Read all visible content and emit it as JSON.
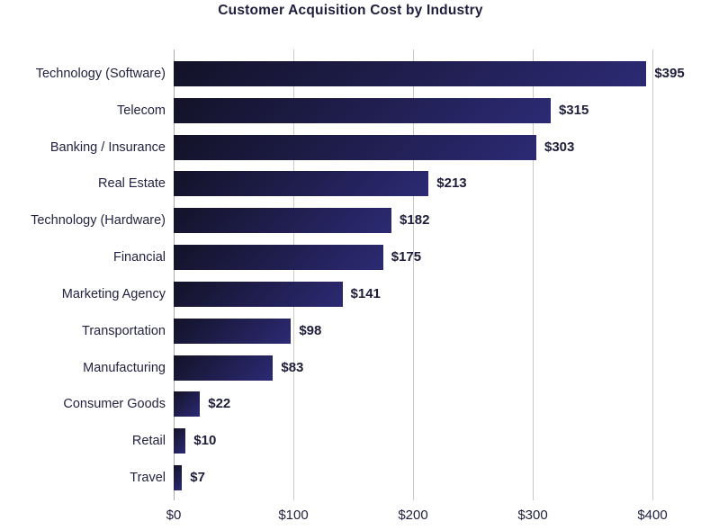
{
  "chart_data": {
    "type": "bar",
    "orientation": "horizontal",
    "title": "Customer Acquisition Cost by Industry",
    "categories": [
      "Technology (Software)",
      "Telecom",
      "Banking / Insurance",
      "Real Estate",
      "Technology (Hardware)",
      "Financial",
      "Marketing Agency",
      "Transportation",
      "Manufacturing",
      "Consumer Goods",
      "Retail",
      "Travel"
    ],
    "values": [
      395,
      315,
      303,
      213,
      182,
      175,
      141,
      98,
      83,
      22,
      10,
      7
    ],
    "value_labels": [
      "$395",
      "$315",
      "$303",
      "$213",
      "$182",
      "$175",
      "$141",
      "$98",
      "$83",
      "$22",
      "$10",
      "$7"
    ],
    "xlabel": "",
    "ylabel": "",
    "xlim": [
      0,
      400
    ],
    "x_ticks": [
      "$0",
      "$100",
      "$200",
      "$300",
      "$400"
    ],
    "x_tick_values": [
      0,
      100,
      200,
      300,
      400
    ],
    "grid": "vertical",
    "legend": "none",
    "colors": {
      "bar_gradient_start": "#131228",
      "bar_gradient_end": "#2c2a74",
      "title_text": "#1e1d3b",
      "category_text": "#232241",
      "value_text": "#1e1d3b",
      "tick_text": "#232240",
      "gridline": "#c9c9c9",
      "zero_axis_line": "#aaaaaa",
      "background": "#ffffff"
    }
  }
}
